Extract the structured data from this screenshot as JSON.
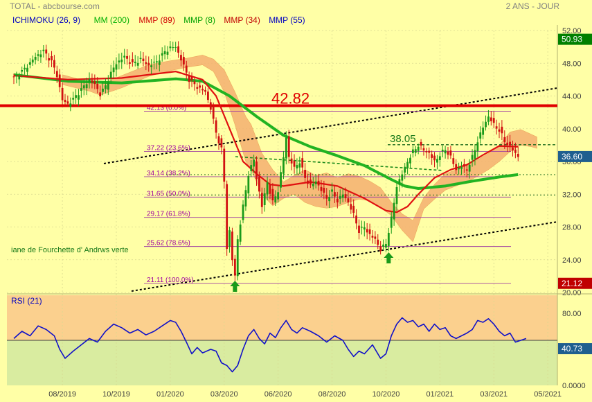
{
  "header": {
    "title": "TOTAL - abcbourse.com",
    "period": "2 ANS - JOUR"
  },
  "legend": [
    {
      "label": "ICHIMOKU (26, 9)",
      "color": "#0000c0"
    },
    {
      "label": "MM (200)",
      "color": "#00b000"
    },
    {
      "label": "MMP (89)",
      "color": "#d00000"
    },
    {
      "label": "MMP (8)",
      "color": "#00a000"
    },
    {
      "label": "MMP (34)",
      "color": "#c00000"
    },
    {
      "label": "MMP (55)",
      "color": "#0000c0"
    }
  ],
  "chart_data": [
    {
      "type": "line",
      "name": "price",
      "ylim": [
        20,
        52
      ],
      "yticks": [
        "52.00",
        "48.00",
        "44.00",
        "40.00",
        "36.00",
        "32.00",
        "28.00",
        "24.00",
        "20.00"
      ],
      "ytick_values": [
        52,
        48,
        44,
        40,
        36,
        32,
        28,
        24,
        20
      ],
      "xticks": [
        "08/2019",
        "10/2019",
        "01/2020",
        "03/2020",
        "06/2020",
        "08/2020",
        "10/2020",
        "01/2021",
        "03/2021",
        "05/2021"
      ],
      "xtick_index": [
        18,
        38,
        58,
        78,
        98,
        118,
        138,
        158,
        178,
        198
      ],
      "x_count": 200,
      "close_points": [
        [
          0,
          46.2
        ],
        [
          4,
          47.3
        ],
        [
          8,
          48.8
        ],
        [
          11,
          49.5
        ],
        [
          14,
          48.2
        ],
        [
          16,
          46.5
        ],
        [
          18,
          43.5
        ],
        [
          20,
          43.0
        ],
        [
          22,
          43.6
        ],
        [
          25,
          44.8
        ],
        [
          28,
          46.0
        ],
        [
          30,
          45.4
        ],
        [
          32,
          44.2
        ],
        [
          34,
          45.2
        ],
        [
          36,
          46.8
        ],
        [
          38,
          48.0
        ],
        [
          41,
          48.8
        ],
        [
          44,
          47.9
        ],
        [
          47,
          48.5
        ],
        [
          50,
          47.7
        ],
        [
          53,
          48.2
        ],
        [
          56,
          49.4
        ],
        [
          58,
          49.9
        ],
        [
          60,
          50.0
        ],
        [
          62,
          48.5
        ],
        [
          65,
          46.0
        ],
        [
          68,
          45.1
        ],
        [
          71,
          44.5
        ],
        [
          73,
          42.5
        ],
        [
          75,
          39.5
        ],
        [
          77,
          37.5
        ],
        [
          78,
          33.5
        ],
        [
          79,
          25.5
        ],
        [
          80,
          27.5
        ],
        [
          81,
          24.0
        ],
        [
          82,
          22.0
        ],
        [
          83,
          26.5
        ],
        [
          85,
          30.5
        ],
        [
          87,
          34.5
        ],
        [
          89,
          36.2
        ],
        [
          90,
          34.0
        ],
        [
          92,
          30.5
        ],
        [
          94,
          33.5
        ],
        [
          96,
          31.0
        ],
        [
          98,
          32.5
        ],
        [
          100,
          36.5
        ],
        [
          101,
          39.0
        ],
        [
          102,
          36.5
        ],
        [
          104,
          35.2
        ],
        [
          106,
          36.0
        ],
        [
          108,
          34.0
        ],
        [
          110,
          33.0
        ],
        [
          112,
          33.6
        ],
        [
          114,
          32.5
        ],
        [
          116,
          31.5
        ],
        [
          118,
          32.3
        ],
        [
          120,
          31.2
        ],
        [
          122,
          32.0
        ],
        [
          124,
          31.0
        ],
        [
          126,
          29.5
        ],
        [
          128,
          27.5
        ],
        [
          130,
          28.0
        ],
        [
          132,
          27.0
        ],
        [
          134,
          26.5
        ],
        [
          136,
          25.2
        ],
        [
          138,
          26.0
        ],
        [
          140,
          29.0
        ],
        [
          142,
          33.0
        ],
        [
          144,
          34.5
        ],
        [
          146,
          36.0
        ],
        [
          148,
          37.2
        ],
        [
          150,
          38.0
        ],
        [
          152,
          37.4
        ],
        [
          154,
          37.0
        ],
        [
          156,
          36.0
        ],
        [
          158,
          36.8
        ],
        [
          160,
          37.5
        ],
        [
          162,
          36.5
        ],
        [
          164,
          35.0
        ],
        [
          166,
          35.4
        ],
        [
          168,
          35.0
        ],
        [
          170,
          36.5
        ],
        [
          172,
          38.5
        ],
        [
          174,
          40.2
        ],
        [
          176,
          41.5
        ],
        [
          178,
          40.5
        ],
        [
          180,
          39.8
        ],
        [
          182,
          38.5
        ],
        [
          184,
          37.8
        ],
        [
          186,
          37.0
        ],
        [
          187,
          36.6
        ]
      ],
      "mm200_points": [
        [
          0,
          46.6
        ],
        [
          20,
          45.8
        ],
        [
          40,
          45.6
        ],
        [
          60,
          46.1
        ],
        [
          70,
          45.8
        ],
        [
          80,
          44.0
        ],
        [
          90,
          41.5
        ],
        [
          100,
          39.2
        ],
        [
          110,
          37.8
        ],
        [
          120,
          36.7
        ],
        [
          130,
          35.5
        ],
        [
          140,
          33.8
        ],
        [
          145,
          33.0
        ],
        [
          150,
          32.7
        ],
        [
          160,
          33.0
        ],
        [
          170,
          33.6
        ],
        [
          180,
          34.1
        ],
        [
          187,
          34.4
        ]
      ],
      "mmp89_points": [
        [
          0,
          46.5
        ],
        [
          20,
          46.0
        ],
        [
          40,
          46.2
        ],
        [
          60,
          47.0
        ],
        [
          70,
          46.0
        ],
        [
          75,
          44.0
        ],
        [
          80,
          40.0
        ],
        [
          85,
          36.0
        ],
        [
          90,
          34.5
        ],
        [
          95,
          33.2
        ],
        [
          100,
          33.0
        ],
        [
          110,
          33.5
        ],
        [
          120,
          33.0
        ],
        [
          130,
          31.5
        ],
        [
          138,
          30.0
        ],
        [
          142,
          29.8
        ],
        [
          146,
          30.5
        ],
        [
          150,
          32.0
        ],
        [
          156,
          34.0
        ],
        [
          162,
          35.0
        ],
        [
          168,
          35.6
        ],
        [
          174,
          36.8
        ],
        [
          180,
          37.9
        ],
        [
          187,
          37.8
        ]
      ],
      "cloud": {
        "color": "#f5b070",
        "upper": [
          [
            18,
            46.6
          ],
          [
            28,
            45.7
          ],
          [
            32,
            45.4
          ],
          [
            40,
            46.5
          ],
          [
            50,
            47.8
          ],
          [
            58,
            48.3
          ],
          [
            64,
            48.6
          ],
          [
            70,
            49.0
          ],
          [
            74,
            48.5
          ],
          [
            78,
            47.2
          ],
          [
            82,
            44.5
          ],
          [
            86,
            41.5
          ],
          [
            88,
            40.5
          ],
          [
            92,
            37.0
          ],
          [
            96,
            35.0
          ],
          [
            100,
            33.5
          ],
          [
            104,
            34.3
          ],
          [
            108,
            35.0
          ],
          [
            112,
            34.3
          ],
          [
            116,
            34.6
          ],
          [
            120,
            34.0
          ],
          [
            124,
            34.5
          ],
          [
            128,
            34.2
          ],
          [
            132,
            33.6
          ],
          [
            136,
            32.8
          ],
          [
            140,
            31.0
          ],
          [
            144,
            29.6
          ],
          [
            148,
            28.8
          ],
          [
            152,
            31.6
          ],
          [
            156,
            33.2
          ],
          [
            160,
            34.5
          ],
          [
            164,
            35.0
          ],
          [
            168,
            35.5
          ],
          [
            172,
            36.2
          ],
          [
            176,
            37.0
          ],
          [
            180,
            38.0
          ],
          [
            184,
            39.6
          ],
          [
            188,
            39.9
          ],
          [
            192,
            39.3
          ],
          [
            194,
            39.0
          ]
        ],
        "lower": [
          [
            18,
            45.4
          ],
          [
            28,
            44.6
          ],
          [
            32,
            44.1
          ],
          [
            40,
            45.0
          ],
          [
            50,
            46.4
          ],
          [
            58,
            47.1
          ],
          [
            64,
            47.5
          ],
          [
            70,
            47.8
          ],
          [
            74,
            47.0
          ],
          [
            78,
            44.5
          ],
          [
            82,
            40.5
          ],
          [
            86,
            36.0
          ],
          [
            88,
            35.0
          ],
          [
            92,
            32.0
          ],
          [
            96,
            30.6
          ],
          [
            100,
            31.5
          ],
          [
            104,
            32.0
          ],
          [
            108,
            31.0
          ],
          [
            112,
            30.5
          ],
          [
            116,
            30.3
          ],
          [
            120,
            30.5
          ],
          [
            124,
            31.0
          ],
          [
            128,
            31.4
          ],
          [
            132,
            31.2
          ],
          [
            136,
            30.4
          ],
          [
            140,
            29.4
          ],
          [
            144,
            27.6
          ],
          [
            148,
            26.2
          ],
          [
            152,
            30.2
          ],
          [
            156,
            31.4
          ],
          [
            160,
            32.5
          ],
          [
            164,
            33.0
          ],
          [
            168,
            33.5
          ],
          [
            172,
            34.2
          ],
          [
            176,
            35.0
          ],
          [
            180,
            36.0
          ],
          [
            184,
            37.2
          ],
          [
            188,
            38.0
          ],
          [
            192,
            37.8
          ],
          [
            194,
            37.6
          ]
        ]
      }
    },
    {
      "type": "line",
      "name": "RSI (21)",
      "ylim": [
        0,
        100
      ],
      "yticks": [
        "80.00",
        "0.0000"
      ],
      "ytick_values": [
        80,
        0
      ],
      "rsi_points": [
        [
          0,
          52
        ],
        [
          3,
          60
        ],
        [
          6,
          55
        ],
        [
          9,
          66
        ],
        [
          12,
          62
        ],
        [
          15,
          55
        ],
        [
          17,
          40
        ],
        [
          19,
          30
        ],
        [
          22,
          38
        ],
        [
          25,
          45
        ],
        [
          28,
          52
        ],
        [
          31,
          48
        ],
        [
          34,
          60
        ],
        [
          37,
          68
        ],
        [
          40,
          64
        ],
        [
          43,
          58
        ],
        [
          46,
          62
        ],
        [
          49,
          56
        ],
        [
          52,
          60
        ],
        [
          55,
          66
        ],
        [
          58,
          72
        ],
        [
          60,
          70
        ],
        [
          62,
          60
        ],
        [
          64,
          48
        ],
        [
          66,
          35
        ],
        [
          68,
          42
        ],
        [
          70,
          36
        ],
        [
          73,
          40
        ],
        [
          75,
          38
        ],
        [
          77,
          25
        ],
        [
          79,
          22
        ],
        [
          81,
          15
        ],
        [
          83,
          22
        ],
        [
          85,
          40
        ],
        [
          87,
          55
        ],
        [
          89,
          62
        ],
        [
          91,
          52
        ],
        [
          93,
          46
        ],
        [
          95,
          58
        ],
        [
          97,
          53
        ],
        [
          99,
          64
        ],
        [
          101,
          72
        ],
        [
          103,
          62
        ],
        [
          105,
          58
        ],
        [
          107,
          64
        ],
        [
          110,
          60
        ],
        [
          113,
          55
        ],
        [
          116,
          48
        ],
        [
          119,
          55
        ],
        [
          122,
          50
        ],
        [
          124,
          40
        ],
        [
          126,
          32
        ],
        [
          128,
          38
        ],
        [
          130,
          35
        ],
        [
          133,
          45
        ],
        [
          136,
          30
        ],
        [
          138,
          35
        ],
        [
          140,
          55
        ],
        [
          142,
          68
        ],
        [
          144,
          75
        ],
        [
          146,
          70
        ],
        [
          148,
          72
        ],
        [
          150,
          65
        ],
        [
          152,
          68
        ],
        [
          154,
          60
        ],
        [
          156,
          68
        ],
        [
          158,
          62
        ],
        [
          160,
          64
        ],
        [
          162,
          55
        ],
        [
          164,
          52
        ],
        [
          166,
          55
        ],
        [
          168,
          58
        ],
        [
          170,
          62
        ],
        [
          172,
          72
        ],
        [
          174,
          70
        ],
        [
          176,
          74
        ],
        [
          178,
          68
        ],
        [
          180,
          60
        ],
        [
          182,
          55
        ],
        [
          184,
          58
        ],
        [
          186,
          48
        ],
        [
          188,
          50
        ],
        [
          190,
          52
        ]
      ]
    }
  ],
  "annotations": {
    "resistance_label": "42.82",
    "resistance_value": 42.82,
    "level_label": "38.05",
    "level_value": 38.05,
    "fork_text": "iane de Fourchette d' Andrws verte",
    "fib": [
      {
        "label": "42.13   (0.0%)",
        "value": 42.13
      },
      {
        "label": "37.22   (23.6%)",
        "value": 37.22
      },
      {
        "label": "34.14   (38.2%)",
        "value": 34.14
      },
      {
        "label": "31.65   (50.0%)",
        "value": 31.65
      },
      {
        "label": "29.17   (61.8%)",
        "value": 29.17
      },
      {
        "label": "25.62   (78.6%)",
        "value": 25.62
      },
      {
        "label": "21.11   (100.0%)",
        "value": 21.11
      }
    ],
    "price_tags": [
      {
        "label": "50.93",
        "value": 50.93,
        "color": "#008000"
      },
      {
        "label": "36.60",
        "value": 36.6,
        "color": "#1f5f8f"
      },
      {
        "label": "21.12",
        "value": 21.12,
        "color": "#c00000"
      }
    ],
    "rsi_title": "RSI (21)",
    "rsi_tag": {
      "label": "40.73",
      "value": 40.73,
      "color": "#1f5f8f"
    },
    "arrow_index": [
      82,
      139
    ]
  }
}
